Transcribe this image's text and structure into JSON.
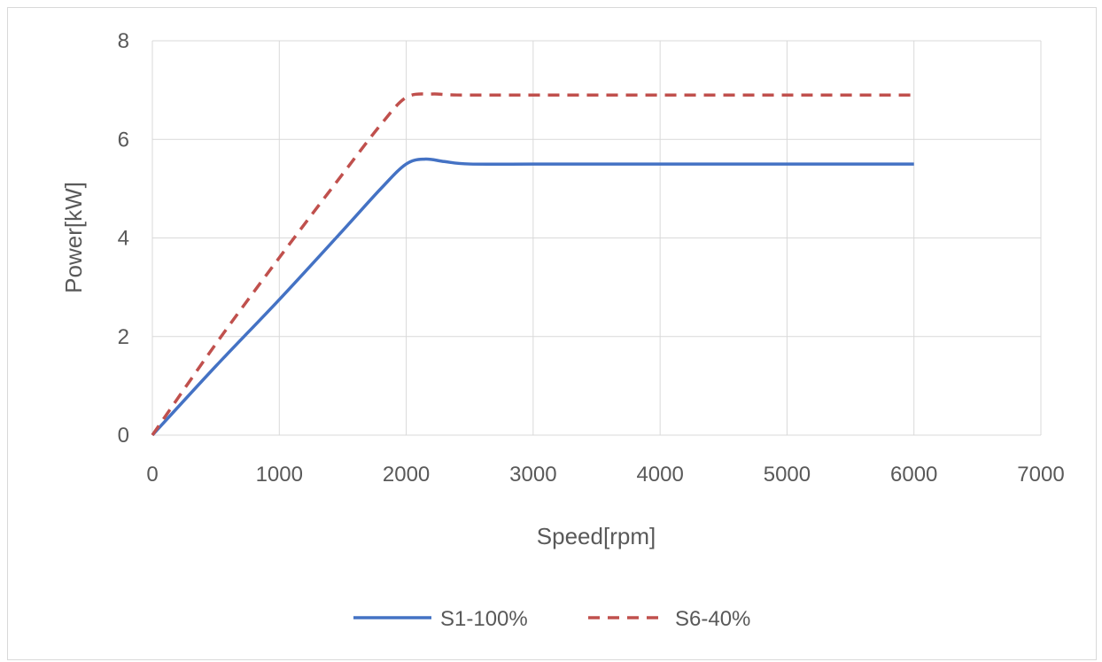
{
  "chart_data": {
    "type": "line",
    "title": "",
    "xlabel": "Speed[rpm]",
    "ylabel": "Power[kW]",
    "xlim": [
      0,
      7000
    ],
    "ylim": [
      0,
      8
    ],
    "xticks": [
      0,
      1000,
      2000,
      3000,
      4000,
      5000,
      6000,
      7000
    ],
    "yticks": [
      0,
      2,
      4,
      6,
      8
    ],
    "grid": true,
    "legend_position": "bottom",
    "series": [
      {
        "name": "S1-100%",
        "color": "#4472c4",
        "dash": "solid",
        "x": [
          0,
          500,
          1000,
          1500,
          1800,
          2000,
          2150,
          2300,
          2500,
          3000,
          4000,
          5000,
          6000
        ],
        "y": [
          0,
          1.4,
          2.75,
          4.15,
          5.0,
          5.5,
          5.6,
          5.55,
          5.5,
          5.5,
          5.5,
          5.5,
          5.5
        ]
      },
      {
        "name": "S6-40%",
        "color": "#c0504d",
        "dash": "dashed",
        "x": [
          0,
          500,
          1000,
          1500,
          1800,
          2000,
          2200,
          2400,
          3000,
          4000,
          5000,
          6000
        ],
        "y": [
          0,
          1.85,
          3.6,
          5.3,
          6.3,
          6.85,
          6.92,
          6.9,
          6.9,
          6.9,
          6.9,
          6.9
        ]
      }
    ]
  }
}
